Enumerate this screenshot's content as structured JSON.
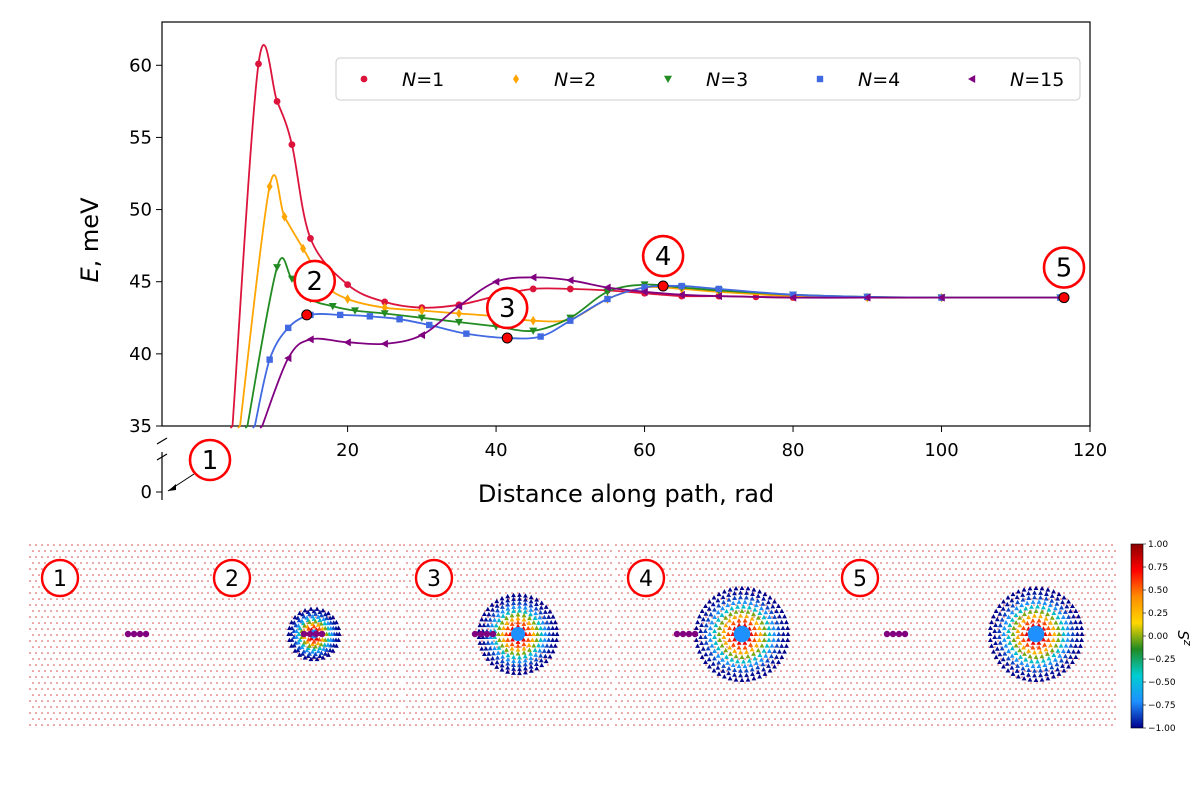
{
  "chart_data": {
    "type": "line",
    "xlabel": "Distance along path, rad",
    "ylabel_italic": "E",
    "ylabel_rest": ", meV",
    "xlim": [
      -5,
      120
    ],
    "ylim": [
      35,
      63
    ],
    "y_broken_tick": 0,
    "xticks": [
      20,
      40,
      60,
      80,
      100,
      120
    ],
    "yticks": [
      35,
      40,
      45,
      50,
      55,
      60
    ],
    "grid": false,
    "legend_position": "top-right",
    "series": [
      {
        "name": "N=1",
        "label_var": "N",
        "label_val": "=1",
        "color": "#dc143c",
        "marker": "circle",
        "x": [
          4.5,
          8.0,
          10.5,
          12.5,
          15,
          20,
          25,
          30,
          35,
          40,
          45,
          50,
          55,
          60,
          65,
          70,
          75,
          80,
          90,
          100,
          116.5
        ],
        "y": [
          35,
          60.1,
          57.5,
          54.5,
          48.0,
          44.8,
          43.6,
          43.2,
          43.4,
          44.0,
          44.5,
          44.5,
          44.4,
          44.2,
          44.0,
          44.0,
          43.95,
          43.9,
          43.9,
          43.9,
          43.9
        ]
      },
      {
        "name": "N=2",
        "label_var": "N",
        "label_val": "=2",
        "color": "#ffa500",
        "marker": "diamond",
        "x": [
          5.5,
          9.5,
          11.5,
          14,
          17,
          20,
          25,
          30,
          35,
          40,
          45,
          50,
          55,
          60,
          65,
          70,
          80,
          90,
          100,
          116
        ],
        "y": [
          35,
          51.6,
          49.5,
          47.3,
          44.8,
          43.8,
          43.2,
          43.0,
          42.8,
          42.6,
          42.3,
          42.4,
          43.8,
          44.6,
          44.5,
          44.3,
          44.0,
          43.9,
          43.9,
          43.9
        ]
      },
      {
        "name": "N=3",
        "label_var": "N",
        "label_val": "=3",
        "color": "#228b22",
        "marker": "triangle-down",
        "x": [
          6.5,
          10.5,
          12.5,
          15,
          18,
          21,
          25,
          30,
          35,
          40,
          45,
          50,
          55,
          60,
          65,
          70,
          80,
          90,
          100,
          116
        ],
        "y": [
          35,
          46.0,
          45.2,
          43.8,
          43.3,
          43.0,
          42.8,
          42.5,
          42.2,
          41.9,
          41.6,
          42.5,
          44.3,
          44.8,
          44.6,
          44.4,
          44.1,
          43.95,
          43.9,
          43.9
        ]
      },
      {
        "name": "N=4",
        "label_var": "N",
        "label_val": "=4",
        "color": "#4169e1",
        "marker": "square",
        "x": [
          7.5,
          9.5,
          12,
          15,
          19,
          23,
          27,
          31,
          36,
          41.5,
          46,
          50,
          55,
          60,
          65,
          70,
          80,
          90,
          100,
          116
        ],
        "y": [
          35,
          39.6,
          41.8,
          42.7,
          42.7,
          42.6,
          42.4,
          42.0,
          41.4,
          41.1,
          41.2,
          42.3,
          43.8,
          44.6,
          44.7,
          44.5,
          44.1,
          43.95,
          43.9,
          43.9
        ]
      },
      {
        "name": "N=15",
        "label_var": "N",
        "label_val": "=15",
        "color": "#800080",
        "marker": "triangle-left",
        "x": [
          8.5,
          12,
          15,
          20,
          25,
          30,
          35,
          40,
          45,
          50,
          55,
          60,
          65,
          70,
          80,
          90,
          100,
          116
        ],
        "y": [
          35,
          39.7,
          41.0,
          40.8,
          40.7,
          41.3,
          43.3,
          45.0,
          45.3,
          45.1,
          44.6,
          44.3,
          44.1,
          44.0,
          43.9,
          43.9,
          43.9,
          43.9
        ]
      }
    ],
    "annotations": [
      {
        "label": "1",
        "x": 2.0,
        "y": 0
      },
      {
        "label": "2",
        "x": 14.5,
        "y": 42.7
      },
      {
        "label": "3",
        "x": 41.5,
        "y": 41.1
      },
      {
        "label": "4",
        "x": 62.5,
        "y": 44.7
      },
      {
        "label": "5",
        "x": 116.5,
        "y": 43.9
      }
    ]
  },
  "panels": [
    {
      "label": "1",
      "skyrmion": 0
    },
    {
      "label": "2",
      "skyrmion": 0.55
    },
    {
      "label": "3",
      "skyrmion": 0.85
    },
    {
      "label": "4",
      "skyrmion": 1.0
    },
    {
      "label": "5",
      "skyrmion": 1.0
    }
  ],
  "colorbar": {
    "label": "S",
    "label_sup": "z",
    "ticks": [
      "1.00",
      "0.75",
      "0.50",
      "0.25",
      "0.00",
      "−0.25",
      "−0.50",
      "−0.75",
      "−1.00"
    ],
    "colors": [
      "#00008b",
      "#1e90ff",
      "#00ced1",
      "#228b22",
      "#ffd700",
      "#ff8c00",
      "#ff0000",
      "#8b0000"
    ]
  }
}
